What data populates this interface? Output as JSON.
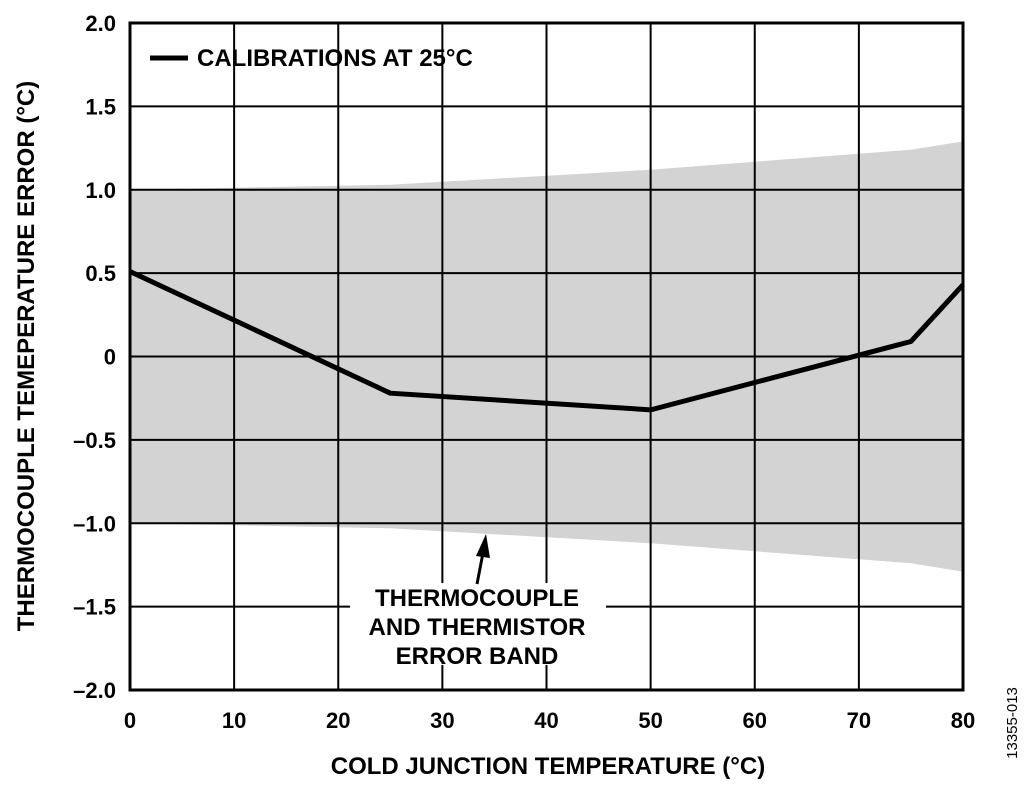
{
  "chart_data": {
    "type": "line",
    "title": "",
    "xlabel": "COLD JUNCTION TEMPERATURE (°C)",
    "ylabel": "THERMOCOUPLE TEMEPERATURE ERROR (°C)",
    "xlim": [
      0,
      80
    ],
    "ylim": [
      -2.0,
      2.0
    ],
    "xticks": [
      0,
      10,
      20,
      30,
      40,
      50,
      60,
      70,
      80
    ],
    "xtick_labels": [
      "0",
      "10",
      "20",
      "30",
      "40",
      "50",
      "60",
      "70",
      "80"
    ],
    "yticks": [
      2.0,
      1.5,
      1.0,
      0.5,
      0,
      -0.5,
      -1.0,
      -1.5,
      -2.0
    ],
    "ytick_labels": [
      "2.0",
      "1.5",
      "1.0",
      "0.5",
      "0",
      "–0.5",
      "–1.0",
      "–1.5",
      "–2.0"
    ],
    "grid": true,
    "legend_position": "top-left",
    "series": [
      {
        "name": "CALIBRATIONS AT 25°C",
        "color": "#000000",
        "x": [
          0,
          25,
          50,
          75,
          80
        ],
        "y": [
          0.51,
          -0.22,
          -0.32,
          0.09,
          0.43
        ]
      }
    ],
    "band": {
      "color": "#d3d3d3",
      "x": [
        0,
        25,
        50,
        75,
        80
      ],
      "upper": [
        1.0,
        1.03,
        1.12,
        1.24,
        1.29
      ],
      "lower": [
        -1.0,
        -1.03,
        -1.12,
        -1.24,
        -1.29
      ]
    },
    "annotation": {
      "lines": [
        "THERMOCOUPLE",
        "AND THERMISTOR",
        "ERROR BAND"
      ],
      "arrow_target": {
        "x": 34,
        "y": -1.1
      }
    },
    "figure_id": "13355-013"
  }
}
